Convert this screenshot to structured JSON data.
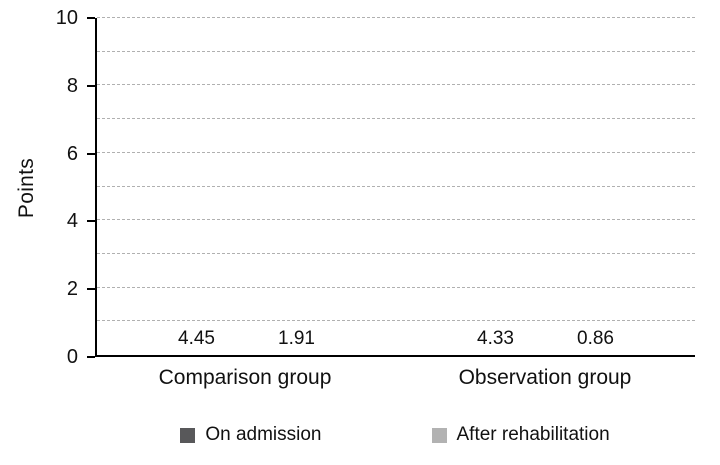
{
  "chart_data": {
    "type": "bar",
    "title": "",
    "xlabel": "",
    "ylabel": "Points",
    "categories": [
      "Comparison group",
      "Observation group"
    ],
    "series": [
      {
        "name": "On admission",
        "color": "#58585a",
        "values": [
          4.45,
          4.33
        ],
        "value_labels": [
          "4.45",
          "4.33"
        ]
      },
      {
        "name": "After rehabilitation",
        "color": "#b2b2b2",
        "values": [
          1.91,
          0.86
        ],
        "value_labels": [
          "1.91",
          "0.86"
        ]
      }
    ],
    "ylim": [
      0,
      10
    ],
    "yticks": [
      0,
      2,
      4,
      6,
      8,
      10
    ],
    "grid_step": 1,
    "grid": "dashed",
    "legend_position": "bottom"
  }
}
